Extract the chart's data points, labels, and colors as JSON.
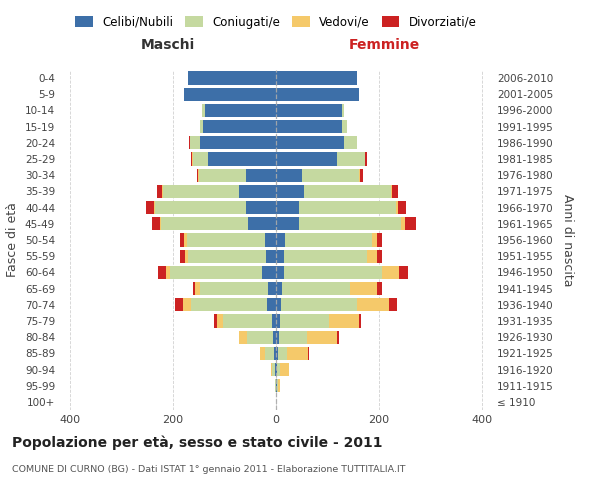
{
  "age_groups": [
    "100+",
    "95-99",
    "90-94",
    "85-89",
    "80-84",
    "75-79",
    "70-74",
    "65-69",
    "60-64",
    "55-59",
    "50-54",
    "45-49",
    "40-44",
    "35-39",
    "30-34",
    "25-29",
    "20-24",
    "15-19",
    "10-14",
    "5-9",
    "0-4"
  ],
  "birth_years": [
    "≤ 1910",
    "1911-1915",
    "1916-1920",
    "1921-1925",
    "1926-1930",
    "1931-1935",
    "1936-1940",
    "1941-1945",
    "1946-1950",
    "1951-1955",
    "1956-1960",
    "1961-1965",
    "1966-1970",
    "1971-1975",
    "1976-1980",
    "1981-1985",
    "1986-1990",
    "1991-1995",
    "1996-2000",
    "2001-2005",
    "2006-2010"
  ],
  "maschi": {
    "celibi": [
      0,
      0,
      2,
      3,
      5,
      8,
      18,
      15,
      28,
      20,
      22,
      55,
      58,
      72,
      58,
      132,
      148,
      142,
      138,
      178,
      172
    ],
    "coniugati": [
      0,
      1,
      5,
      18,
      52,
      95,
      148,
      132,
      178,
      152,
      152,
      168,
      178,
      148,
      92,
      30,
      20,
      5,
      5,
      0,
      0
    ],
    "vedovi": [
      0,
      0,
      2,
      10,
      15,
      12,
      15,
      10,
      8,
      5,
      5,
      3,
      2,
      2,
      1,
      1,
      0,
      0,
      0,
      0,
      0
    ],
    "divorziati": [
      0,
      0,
      0,
      0,
      0,
      5,
      15,
      5,
      15,
      10,
      8,
      15,
      15,
      10,
      3,
      2,
      1,
      0,
      0,
      0,
      0
    ]
  },
  "femmine": {
    "nubili": [
      0,
      1,
      2,
      3,
      5,
      8,
      10,
      12,
      15,
      15,
      18,
      45,
      45,
      55,
      50,
      118,
      132,
      128,
      128,
      162,
      158
    ],
    "coniugate": [
      0,
      2,
      5,
      18,
      55,
      95,
      148,
      132,
      192,
      162,
      168,
      198,
      188,
      168,
      112,
      55,
      25,
      10,
      5,
      0,
      0
    ],
    "vedove": [
      0,
      5,
      18,
      42,
      58,
      58,
      62,
      52,
      32,
      20,
      10,
      8,
      5,
      3,
      2,
      1,
      0,
      0,
      0,
      0,
      0
    ],
    "divorziate": [
      0,
      0,
      0,
      2,
      5,
      5,
      15,
      10,
      18,
      10,
      10,
      22,
      15,
      12,
      5,
      2,
      1,
      0,
      0,
      0,
      0
    ]
  },
  "colors": {
    "celibi": "#3d6fa8",
    "coniugati": "#c5d9a0",
    "vedovi": "#f5c96a",
    "divorziati": "#cc2222"
  },
  "title": "Popolazione per età, sesso e stato civile - 2011",
  "subtitle": "COMUNE DI CURNO (BG) - Dati ISTAT 1° gennaio 2011 - Elaborazione TUTTITALIA.IT",
  "xlabel_left": "Maschi",
  "xlabel_right": "Femmine",
  "ylabel_left": "Fasce di età",
  "ylabel_right": "Anni di nascita",
  "xlim": 420,
  "legend_labels": [
    "Celibi/Nubili",
    "Coniugati/e",
    "Vedovi/e",
    "Divorziati/e"
  ],
  "background_color": "#ffffff",
  "grid_color": "#cccccc"
}
